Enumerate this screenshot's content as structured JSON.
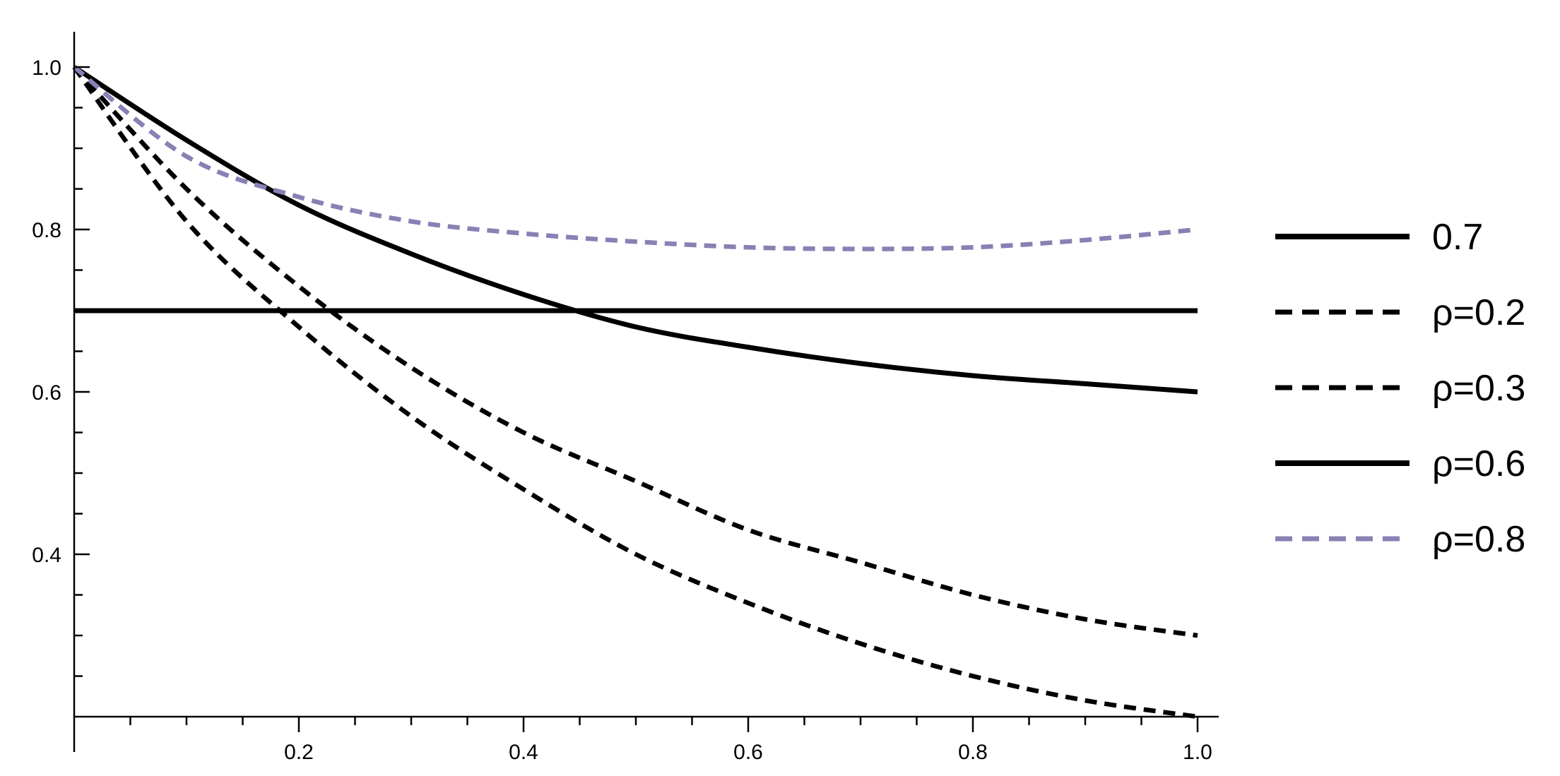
{
  "chart_data": {
    "type": "line",
    "title": "",
    "xlabel": "",
    "ylabel": "",
    "xlim": [
      0,
      1.0
    ],
    "ylim": [
      0.2,
      1.0
    ],
    "x_ticks": [
      "0.2",
      "0.4",
      "0.6",
      "0.8",
      "1.0"
    ],
    "y_ticks": [
      "0.4",
      "0.6",
      "0.8",
      "1.0"
    ],
    "legend_position": "right",
    "grid": false,
    "series": [
      {
        "name": "0.7",
        "style": "solid",
        "color": "#000000",
        "x": [
          0,
          1.0
        ],
        "y": [
          0.7,
          0.7
        ]
      },
      {
        "name": "ρ=0.2",
        "style": "dashed",
        "color": "#000000",
        "x": [
          0,
          0.1,
          0.2,
          0.3,
          0.4,
          0.5,
          0.6,
          0.7,
          0.8,
          0.9,
          1.0
        ],
        "y": [
          1.0,
          0.81,
          0.68,
          0.57,
          0.48,
          0.4,
          0.34,
          0.29,
          0.25,
          0.22,
          0.2
        ]
      },
      {
        "name": "ρ=0.3",
        "style": "dashed",
        "color": "#000000",
        "x": [
          0,
          0.1,
          0.2,
          0.3,
          0.4,
          0.5,
          0.6,
          0.7,
          0.8,
          0.9,
          1.0
        ],
        "y": [
          1.0,
          0.85,
          0.73,
          0.63,
          0.55,
          0.49,
          0.43,
          0.39,
          0.35,
          0.32,
          0.3
        ]
      },
      {
        "name": "ρ=0.6",
        "style": "solid",
        "color": "#000000",
        "x": [
          0,
          0.1,
          0.2,
          0.3,
          0.4,
          0.5,
          0.6,
          0.7,
          0.8,
          0.9,
          1.0
        ],
        "y": [
          1.0,
          0.91,
          0.83,
          0.77,
          0.72,
          0.68,
          0.655,
          0.635,
          0.62,
          0.61,
          0.6
        ]
      },
      {
        "name": "ρ=0.8",
        "style": "dashed",
        "color": "#8a80b4",
        "x": [
          0,
          0.1,
          0.2,
          0.3,
          0.4,
          0.5,
          0.6,
          0.7,
          0.8,
          0.9,
          1.0
        ],
        "y": [
          1.0,
          0.89,
          0.84,
          0.81,
          0.795,
          0.785,
          0.778,
          0.776,
          0.778,
          0.787,
          0.8
        ]
      }
    ]
  }
}
